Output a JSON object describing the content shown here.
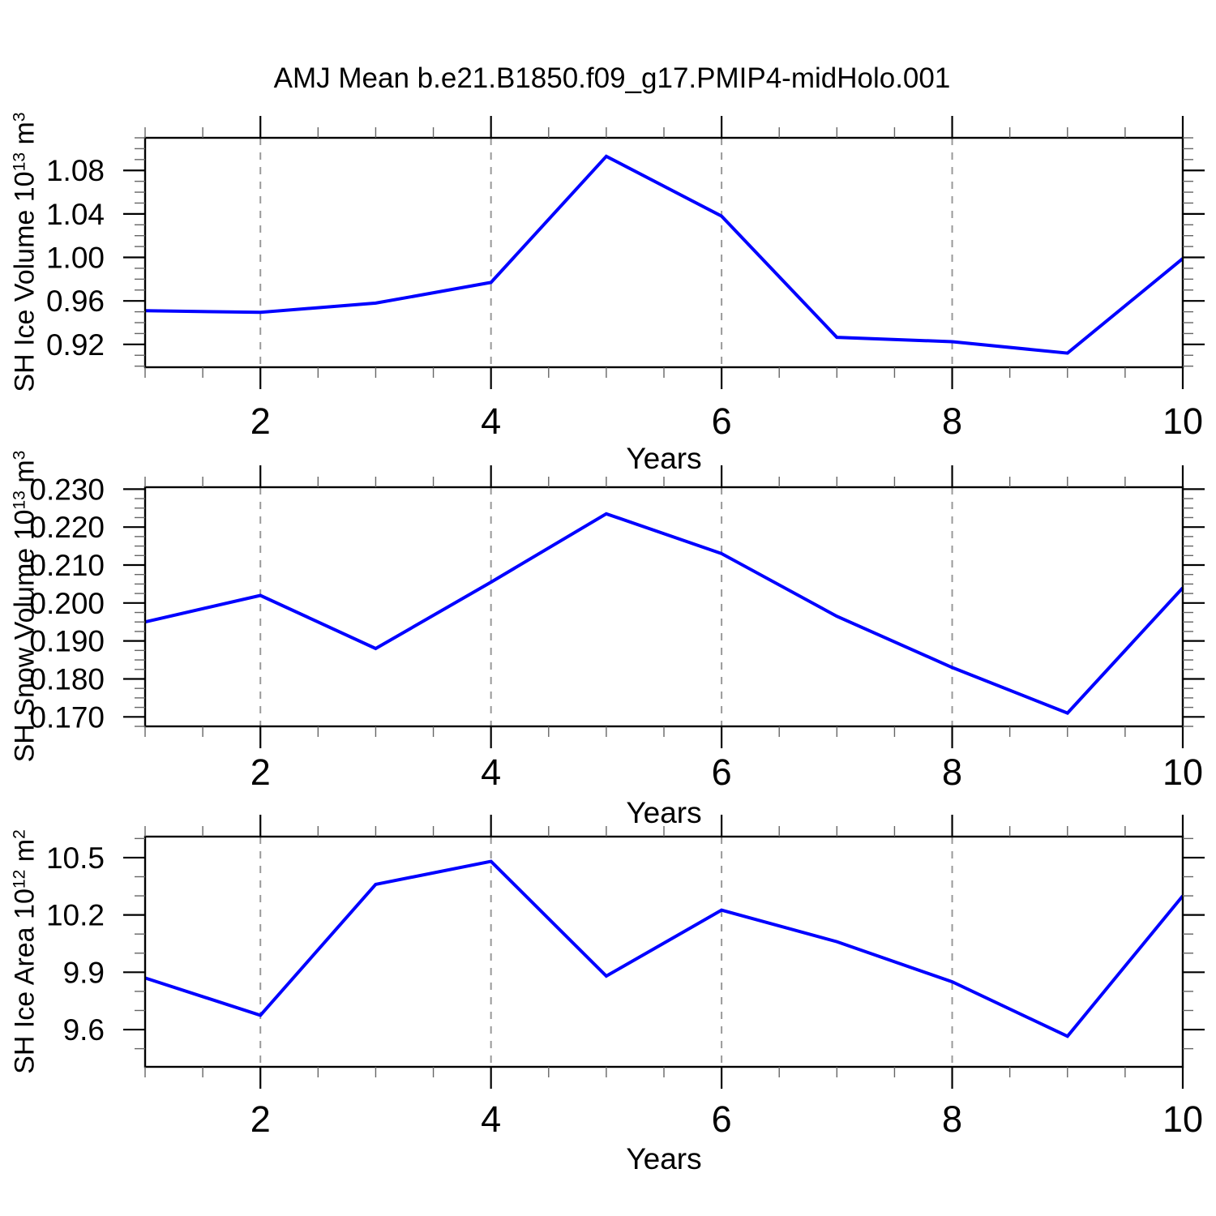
{
  "title": "AMJ Mean b.e21.B1850.f09_g17.PMIP4-midHolo.001",
  "colors": {
    "line": "#0000ff",
    "grid": "#999999",
    "frame": "#000000",
    "minor_tick": "#666666",
    "text": "#000000",
    "background": "#ffffff"
  },
  "panels": [
    {
      "ylabel_base1": "SH Ice Volume 10",
      "ylabel_sup1": "13",
      "ylabel_base2": " m",
      "ylabel_sup2": "3",
      "xlabel": "Years"
    },
    {
      "ylabel_base1": "SH Snow Volume 10",
      "ylabel_sup1": "13",
      "ylabel_base2": " m",
      "ylabel_sup2": "3",
      "xlabel": "Years"
    },
    {
      "ylabel_base1": "SH Ice Area 10",
      "ylabel_sup1": "12",
      "ylabel_base2": " m",
      "ylabel_sup2": "2",
      "xlabel": "Years"
    }
  ],
  "chart_data": [
    {
      "type": "line",
      "title": "AMJ Mean b.e21.B1850.f09_g17.PMIP4-midHolo.001",
      "xlabel": "Years",
      "ylabel": "SH Ice Volume 10^13 m^3",
      "x": [
        1,
        2,
        3,
        4,
        5,
        6,
        7,
        8,
        9,
        10
      ],
      "series": [
        {
          "name": "SH Ice Volume",
          "values": [
            0.951,
            0.9495,
            0.958,
            0.977,
            1.093,
            1.038,
            0.9265,
            0.9225,
            0.912,
            0.999
          ]
        }
      ],
      "xlim": [
        1,
        10
      ],
      "ylim": [
        0.899,
        1.11
      ],
      "xticks": {
        "major": [
          2,
          4,
          6,
          8,
          10
        ],
        "labels": [
          "2",
          "4",
          "6",
          "8",
          "10"
        ],
        "minor_step": 0.5
      },
      "yticks": {
        "major": [
          0.92,
          0.96,
          1.0,
          1.04,
          1.08
        ],
        "labels": [
          "0.92",
          "0.96",
          "1.00",
          "1.04",
          "1.08"
        ],
        "minor_step": 0.01
      },
      "grid_x": [
        2,
        4,
        6,
        8
      ],
      "grid_style": "dashed",
      "legend": false
    },
    {
      "type": "line",
      "title": "",
      "xlabel": "Years",
      "ylabel": "SH Snow Volume 10^13 m^3",
      "x": [
        1,
        2,
        3,
        4,
        5,
        6,
        7,
        8,
        9,
        10
      ],
      "series": [
        {
          "name": "SH Snow Volume",
          "values": [
            0.195,
            0.202,
            0.188,
            0.2055,
            0.2235,
            0.213,
            0.1965,
            0.183,
            0.171,
            0.204
          ]
        }
      ],
      "xlim": [
        1,
        10
      ],
      "ylim": [
        0.1675,
        0.2305
      ],
      "xticks": {
        "major": [
          2,
          4,
          6,
          8,
          10
        ],
        "labels": [
          "2",
          "4",
          "6",
          "8",
          "10"
        ],
        "minor_step": 0.5
      },
      "yticks": {
        "major": [
          0.17,
          0.18,
          0.19,
          0.2,
          0.21,
          0.22,
          0.23
        ],
        "labels": [
          "0.170",
          "0.180",
          "0.190",
          "0.200",
          "0.210",
          "0.220",
          "0.230"
        ],
        "minor_step": 0.0025
      },
      "grid_x": [
        2,
        4,
        6,
        8
      ],
      "grid_style": "dashed",
      "legend": false
    },
    {
      "type": "line",
      "title": "",
      "xlabel": "Years",
      "ylabel": "SH Ice Area 10^12 m^2",
      "x": [
        1,
        2,
        3,
        4,
        5,
        6,
        7,
        8,
        9,
        10
      ],
      "series": [
        {
          "name": "SH Ice Area",
          "values": [
            9.87,
            9.675,
            10.36,
            10.48,
            9.88,
            10.225,
            10.06,
            9.85,
            9.565,
            10.3
          ]
        }
      ],
      "xlim": [
        1,
        10
      ],
      "ylim": [
        9.405,
        10.61
      ],
      "xticks": {
        "major": [
          2,
          4,
          6,
          8,
          10
        ],
        "labels": [
          "2",
          "4",
          "6",
          "8",
          "10"
        ],
        "minor_step": 0.5
      },
      "yticks": {
        "major": [
          9.6,
          9.9,
          10.2,
          10.5
        ],
        "labels": [
          "9.6",
          "9.9",
          "10.2",
          "10.5"
        ],
        "minor_step": 0.1
      },
      "grid_x": [
        2,
        4,
        6,
        8
      ],
      "grid_style": "dashed",
      "legend": false
    }
  ]
}
